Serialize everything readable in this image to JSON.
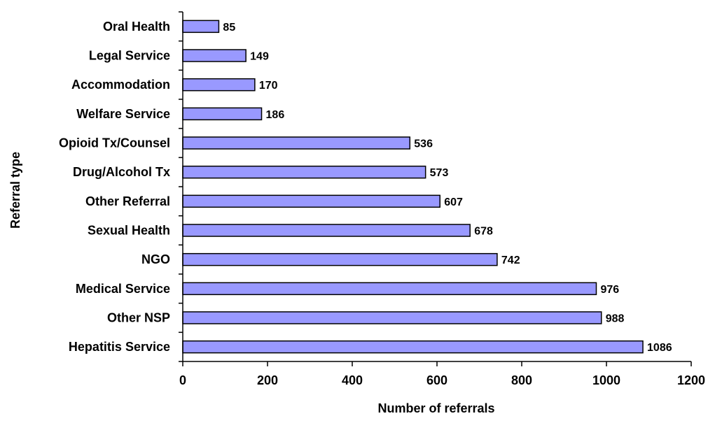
{
  "chart_data": {
    "type": "bar",
    "orientation": "horizontal",
    "title": "",
    "xlabel": "Number of referrals",
    "ylabel": "Referral type",
    "categories": [
      "Oral Health",
      "Legal Service",
      "Accommodation",
      "Welfare Service",
      "Opioid Tx/Counsel",
      "Drug/Alcohol Tx",
      "Other Referral",
      "Sexual Health",
      "NGO",
      "Medical Service",
      "Other NSP",
      "Hepatitis Service"
    ],
    "values": [
      85,
      149,
      170,
      186,
      536,
      573,
      607,
      678,
      742,
      976,
      988,
      1086
    ],
    "xlim": [
      0,
      1200
    ],
    "xticks": [
      0,
      200,
      400,
      600,
      800,
      1000,
      1200
    ],
    "grid": false,
    "legend": "none",
    "data_labels": true,
    "colors": {
      "bar_fill": "#9999ff",
      "bar_stroke": "#000000",
      "axis": "#000000"
    }
  }
}
